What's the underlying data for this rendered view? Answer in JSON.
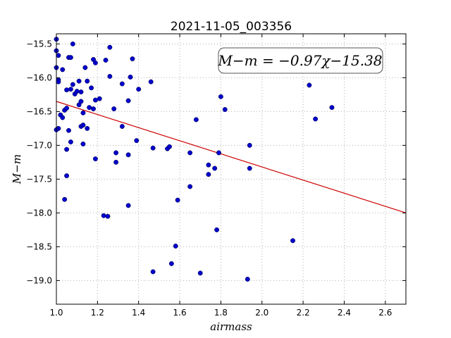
{
  "chart_data": {
    "type": "scatter",
    "title": "2021-11-05_003356",
    "xlabel": "airmass",
    "ylabel": "M−m",
    "xlim": [
      1.0,
      2.7
    ],
    "ylim": [
      -19.35,
      -15.35
    ],
    "y_inverted": true,
    "grid": true,
    "xticks": [
      1.0,
      1.2,
      1.4,
      1.6,
      1.8,
      2.0,
      2.2,
      2.4,
      2.6
    ],
    "xtick_labels": [
      "1.0",
      "1.2",
      "1.4",
      "1.6",
      "1.8",
      "2.0",
      "2.2",
      "2.4",
      "2.6"
    ],
    "yticks": [
      -15.5,
      -16.0,
      -16.5,
      -17.0,
      -17.5,
      -18.0,
      -18.5,
      -19.0
    ],
    "ytick_labels": [
      "−15.5",
      "−16.0",
      "−16.5",
      "−17.0",
      "−17.5",
      "−18.0",
      "−18.5",
      "−19.0"
    ],
    "annotation": "M−m = −0.97χ−15.38",
    "fit_line": {
      "slope": -0.97,
      "intercept": -15.38
    },
    "colors": {
      "points": "#0000cc",
      "fit_line": "#cc0000",
      "grid": "#b0b0b0"
    },
    "points": [
      {
        "x": 1.0,
        "y": -15.43
      },
      {
        "x": 1.0,
        "y": -15.6
      },
      {
        "x": 1.01,
        "y": -15.67
      },
      {
        "x": 1.0,
        "y": -15.85
      },
      {
        "x": 1.01,
        "y": -16.03
      },
      {
        "x": 1.01,
        "y": -16.06
      },
      {
        "x": 1.01,
        "y": -16.75
      },
      {
        "x": 1.0,
        "y": -16.77
      },
      {
        "x": 1.02,
        "y": -16.55
      },
      {
        "x": 1.03,
        "y": -16.59
      },
      {
        "x": 1.03,
        "y": -15.88
      },
      {
        "x": 1.04,
        "y": -16.48
      },
      {
        "x": 1.05,
        "y": -16.45
      },
      {
        "x": 1.05,
        "y": -16.18
      },
      {
        "x": 1.06,
        "y": -15.7
      },
      {
        "x": 1.07,
        "y": -15.7
      },
      {
        "x": 1.06,
        "y": -16.78
      },
      {
        "x": 1.05,
        "y": -17.06
      },
      {
        "x": 1.04,
        "y": -17.8
      },
      {
        "x": 1.05,
        "y": -17.45
      },
      {
        "x": 1.07,
        "y": -16.95
      },
      {
        "x": 1.08,
        "y": -15.5
      },
      {
        "x": 1.07,
        "y": -16.17
      },
      {
        "x": 1.08,
        "y": -16.1
      },
      {
        "x": 1.09,
        "y": -16.24
      },
      {
        "x": 1.1,
        "y": -16.2
      },
      {
        "x": 1.11,
        "y": -16.4
      },
      {
        "x": 1.11,
        "y": -16.05
      },
      {
        "x": 1.12,
        "y": -16.21
      },
      {
        "x": 1.12,
        "y": -16.35
      },
      {
        "x": 1.12,
        "y": -16.72
      },
      {
        "x": 1.13,
        "y": -16.98
      },
      {
        "x": 1.13,
        "y": -16.7
      },
      {
        "x": 1.13,
        "y": -16.52
      },
      {
        "x": 1.14,
        "y": -15.85
      },
      {
        "x": 1.15,
        "y": -16.05
      },
      {
        "x": 1.15,
        "y": -16.75
      },
      {
        "x": 1.16,
        "y": -16.44
      },
      {
        "x": 1.17,
        "y": -16.15
      },
      {
        "x": 1.18,
        "y": -16.46
      },
      {
        "x": 1.18,
        "y": -15.73
      },
      {
        "x": 1.19,
        "y": -15.78
      },
      {
        "x": 1.19,
        "y": -16.33
      },
      {
        "x": 1.19,
        "y": -17.2
      },
      {
        "x": 1.21,
        "y": -16.31
      },
      {
        "x": 1.23,
        "y": -18.04
      },
      {
        "x": 1.24,
        "y": -15.74
      },
      {
        "x": 1.25,
        "y": -18.05
      },
      {
        "x": 1.26,
        "y": -15.55
      },
      {
        "x": 1.26,
        "y": -15.98
      },
      {
        "x": 1.28,
        "y": -16.46
      },
      {
        "x": 1.29,
        "y": -17.11
      },
      {
        "x": 1.29,
        "y": -17.25
      },
      {
        "x": 1.32,
        "y": -16.09
      },
      {
        "x": 1.32,
        "y": -16.72
      },
      {
        "x": 1.35,
        "y": -16.34
      },
      {
        "x": 1.35,
        "y": -17.14
      },
      {
        "x": 1.35,
        "y": -17.89
      },
      {
        "x": 1.36,
        "y": -15.99
      },
      {
        "x": 1.37,
        "y": -15.72
      },
      {
        "x": 1.39,
        "y": -16.93
      },
      {
        "x": 1.4,
        "y": -16.17
      },
      {
        "x": 1.46,
        "y": -16.06
      },
      {
        "x": 1.47,
        "y": -17.04
      },
      {
        "x": 1.47,
        "y": -18.87
      },
      {
        "x": 1.54,
        "y": -17.05
      },
      {
        "x": 1.55,
        "y": -17.02
      },
      {
        "x": 1.56,
        "y": -18.75
      },
      {
        "x": 1.58,
        "y": -18.49
      },
      {
        "x": 1.59,
        "y": -17.81
      },
      {
        "x": 1.65,
        "y": -17.61
      },
      {
        "x": 1.65,
        "y": -17.11
      },
      {
        "x": 1.68,
        "y": -16.62
      },
      {
        "x": 1.7,
        "y": -18.89
      },
      {
        "x": 1.74,
        "y": -17.29
      },
      {
        "x": 1.74,
        "y": -17.43
      },
      {
        "x": 1.77,
        "y": -17.34
      },
      {
        "x": 1.78,
        "y": -18.25
      },
      {
        "x": 1.79,
        "y": -17.11
      },
      {
        "x": 1.8,
        "y": -16.28
      },
      {
        "x": 1.82,
        "y": -16.47
      },
      {
        "x": 1.93,
        "y": -18.98
      },
      {
        "x": 1.94,
        "y": -17.0
      },
      {
        "x": 1.94,
        "y": -17.34
      },
      {
        "x": 2.15,
        "y": -18.41
      },
      {
        "x": 2.23,
        "y": -16.11
      },
      {
        "x": 2.26,
        "y": -16.61
      },
      {
        "x": 2.34,
        "y": -16.44
      }
    ]
  }
}
